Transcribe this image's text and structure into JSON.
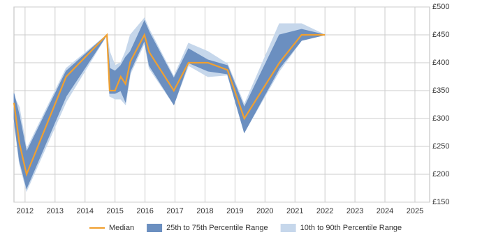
{
  "chart_data": {
    "type": "range-line",
    "x": [
      2011.63,
      2011.81,
      2012.05,
      2013.37,
      2014.73,
      2014.82,
      2015.0,
      2015.19,
      2015.35,
      2015.51,
      2015.98,
      2016.14,
      2016.96,
      2017.45,
      2018.1,
      2018.75,
      2019.31,
      2020.48,
      2021.22,
      2022.0
    ],
    "series": [
      {
        "name": "10th to 90th Percentile Range",
        "color": "#c6d7eb",
        "low": [
          295,
          220,
          170,
          330,
          450,
          340,
          335,
          335,
          325,
          380,
          435,
          390,
          325,
          395,
          375,
          378,
          275,
          385,
          440,
          450
        ],
        "high": [
          340,
          320,
          245,
          390,
          450,
          420,
          395,
          400,
          420,
          450,
          480,
          460,
          375,
          435,
          420,
          398,
          325,
          470,
          470,
          450
        ]
      },
      {
        "name": "25th to 75th Percentile Range",
        "color": "#6b8fc0",
        "low": [
          300,
          225,
          175,
          340,
          450,
          345,
          345,
          350,
          330,
          385,
          440,
          395,
          325,
          400,
          385,
          380,
          275,
          390,
          440,
          450
        ],
        "high": [
          345,
          305,
          240,
          385,
          450,
          390,
          385,
          395,
          410,
          420,
          475,
          455,
          372,
          425,
          405,
          395,
          320,
          450,
          460,
          450
        ]
      },
      {
        "name": "Median",
        "color": "#f0a030",
        "values": [
          328,
          256,
          200,
          375,
          450,
          350,
          350,
          375,
          362,
          402,
          450,
          419,
          350,
          400,
          400,
          387,
          300,
          400,
          450,
          450
        ]
      }
    ],
    "xlim": [
      2011.63,
      2025.49
    ],
    "xticks": [
      2012,
      2013,
      2014,
      2015,
      2016,
      2017,
      2018,
      2019,
      2020,
      2021,
      2022,
      2023,
      2024,
      2025
    ],
    "ylim": [
      150,
      500
    ],
    "yticks": [
      {
        "value": 150,
        "label": "£150"
      },
      {
        "value": 200,
        "label": "£200"
      },
      {
        "value": 250,
        "label": "£250"
      },
      {
        "value": 300,
        "label": "£300"
      },
      {
        "value": 350,
        "label": "£350"
      },
      {
        "value": 400,
        "label": "£400"
      },
      {
        "value": 450,
        "label": "£450"
      },
      {
        "value": 500,
        "label": "£500"
      }
    ],
    "grid": true
  }
}
